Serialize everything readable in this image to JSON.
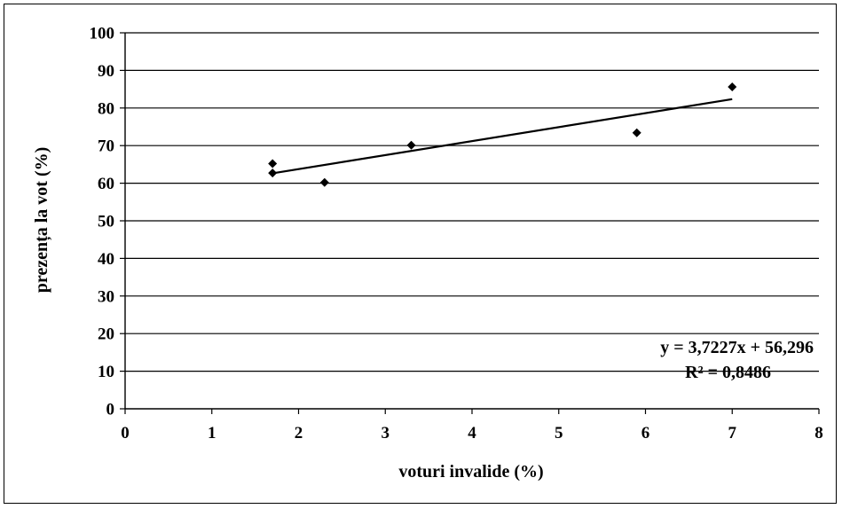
{
  "chart_data": {
    "type": "scatter",
    "xlabel": "voturi invalide (%)",
    "ylabel": "prezența la vot (%)",
    "xlim": [
      0,
      8
    ],
    "ylim": [
      0,
      100
    ],
    "x_ticks": [
      "0",
      "1",
      "2",
      "3",
      "4",
      "5",
      "6",
      "7",
      "8"
    ],
    "y_ticks": [
      "0",
      "10",
      "20",
      "30",
      "40",
      "50",
      "60",
      "70",
      "80",
      "90",
      "100"
    ],
    "grid": "horizontal",
    "marker": "diamond",
    "marker_color": "#000000",
    "points": [
      {
        "x": 1.7,
        "y": 65.2
      },
      {
        "x": 1.7,
        "y": 62.7
      },
      {
        "x": 2.3,
        "y": 60.2
      },
      {
        "x": 3.3,
        "y": 70.1
      },
      {
        "x": 5.9,
        "y": 73.4
      },
      {
        "x": 7.0,
        "y": 85.6
      }
    ],
    "trendline": {
      "type": "linear",
      "slope": 3.7227,
      "intercept": 56.296,
      "x_range": [
        1.7,
        7.0
      ],
      "equation": "y = 3,7227x + 56,296",
      "r_squared": "R² = 0,8486"
    }
  }
}
